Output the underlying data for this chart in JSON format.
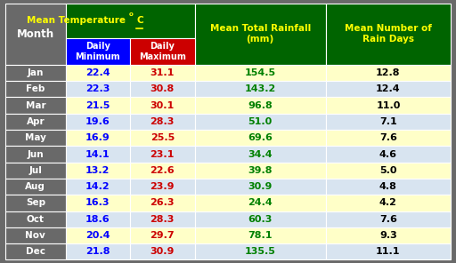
{
  "months": [
    "Jan",
    "Feb",
    "Mar",
    "Apr",
    "May",
    "Jun",
    "Jul",
    "Aug",
    "Sep",
    "Oct",
    "Nov",
    "Dec"
  ],
  "daily_min": [
    22.4,
    22.3,
    21.5,
    19.6,
    16.9,
    14.1,
    13.2,
    14.2,
    16.3,
    18.6,
    20.4,
    21.8
  ],
  "daily_max": [
    31.1,
    30.8,
    30.1,
    28.3,
    25.5,
    23.1,
    22.6,
    23.9,
    26.3,
    28.3,
    29.7,
    30.9
  ],
  "rainfall": [
    154.5,
    143.2,
    96.8,
    51.0,
    69.6,
    34.4,
    39.8,
    30.9,
    24.4,
    60.3,
    78.1,
    135.5
  ],
  "rain_days": [
    12.8,
    12.4,
    11.0,
    7.1,
    7.6,
    4.6,
    5.0,
    4.8,
    4.2,
    7.6,
    9.3,
    11.1
  ],
  "header_bg": "#006400",
  "subheader_min_bg": "#0000FF",
  "subheader_max_bg": "#CC0000",
  "month_col_bg": "#696969",
  "row_bg_odd": "#FFFFC8",
  "row_bg_even": "#D8E4F0",
  "month_text_color": "#FFFFFF",
  "min_text_color": "#0000FF",
  "max_text_color": "#CC0000",
  "rainfall_text_color": "#008000",
  "rain_days_text_color": "#000000",
  "header_text_color": "#FFFF00",
  "subheader_text_color": "#FFFFFF",
  "outer_border_color": "#696969"
}
